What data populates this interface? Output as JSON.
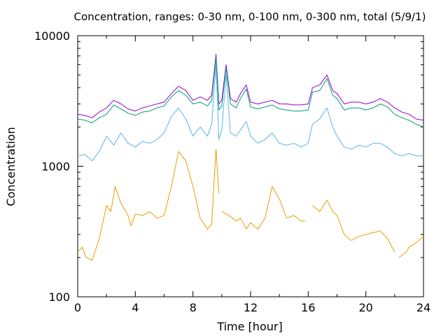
{
  "chart_data": {
    "type": "line",
    "title": "Concentration, ranges: 0-30 nm, 0-100 nm, 0-300 nm, total (5/9/1)",
    "xlabel": "Time [hour]",
    "ylabel": "Concentration",
    "xlim": [
      0,
      24
    ],
    "ylim": [
      100,
      10000
    ],
    "yscale": "log",
    "grid": false,
    "legend": "none",
    "x_ticks": [
      "0",
      "4",
      "8",
      "12",
      "16",
      "20",
      "24"
    ],
    "y_ticks": [
      "100",
      "1000",
      "10000"
    ],
    "series": [
      {
        "color": "#9400d3",
        "points": [
          [
            0,
            2500
          ],
          [
            0.5,
            2450
          ],
          [
            1,
            2350
          ],
          [
            1.5,
            2600
          ],
          [
            2,
            2800
          ],
          [
            2.5,
            3200
          ],
          [
            3,
            3000
          ],
          [
            3.5,
            2750
          ],
          [
            4,
            2650
          ],
          [
            4.5,
            2800
          ],
          [
            5,
            2900
          ],
          [
            5.5,
            3000
          ],
          [
            6,
            3100
          ],
          [
            6.5,
            3600
          ],
          [
            7,
            4100
          ],
          [
            7.5,
            3800
          ],
          [
            8,
            3200
          ],
          [
            8.5,
            3400
          ],
          [
            9,
            3200
          ],
          [
            9.3,
            3500
          ],
          [
            9.6,
            7200
          ],
          [
            9.8,
            3000
          ],
          [
            10,
            3200
          ],
          [
            10.3,
            6000
          ],
          [
            10.6,
            3300
          ],
          [
            11,
            3100
          ],
          [
            11.3,
            3600
          ],
          [
            11.7,
            4200
          ],
          [
            12,
            3100
          ],
          [
            12.5,
            3000
          ],
          [
            13,
            3100
          ],
          [
            13.5,
            3200
          ],
          [
            14,
            3000
          ],
          [
            14.5,
            3000
          ],
          [
            15,
            2950
          ],
          [
            15.5,
            2950
          ],
          [
            16,
            3000
          ],
          [
            16.3,
            4000
          ],
          [
            16.8,
            4200
          ],
          [
            17.3,
            5000
          ],
          [
            17.7,
            3800
          ],
          [
            18,
            3600
          ],
          [
            18.5,
            3000
          ],
          [
            19,
            3100
          ],
          [
            19.5,
            3100
          ],
          [
            20,
            3000
          ],
          [
            20.5,
            3100
          ],
          [
            21,
            3300
          ],
          [
            21.5,
            3100
          ],
          [
            22,
            2800
          ],
          [
            22.5,
            2600
          ],
          [
            23,
            2500
          ],
          [
            23.5,
            2300
          ],
          [
            24,
            2250
          ]
        ]
      },
      {
        "color": "#009e73",
        "points": [
          [
            0,
            2300
          ],
          [
            0.5,
            2250
          ],
          [
            1,
            2150
          ],
          [
            1.5,
            2350
          ],
          [
            2,
            2500
          ],
          [
            2.5,
            2950
          ],
          [
            3,
            2750
          ],
          [
            3.5,
            2550
          ],
          [
            4,
            2450
          ],
          [
            4.5,
            2600
          ],
          [
            5,
            2650
          ],
          [
            5.5,
            2800
          ],
          [
            6,
            2900
          ],
          [
            6.5,
            3400
          ],
          [
            7,
            3800
          ],
          [
            7.5,
            3500
          ],
          [
            8,
            3000
          ],
          [
            8.5,
            3100
          ],
          [
            9,
            2900
          ],
          [
            9.3,
            3200
          ],
          [
            9.6,
            6800
          ],
          [
            9.8,
            2700
          ],
          [
            10,
            2900
          ],
          [
            10.3,
            5700
          ],
          [
            10.6,
            3000
          ],
          [
            11,
            2800
          ],
          [
            11.3,
            3300
          ],
          [
            11.7,
            3900
          ],
          [
            12,
            2850
          ],
          [
            12.5,
            2750
          ],
          [
            13,
            2850
          ],
          [
            13.5,
            2950
          ],
          [
            14,
            2750
          ],
          [
            14.5,
            2700
          ],
          [
            15,
            2650
          ],
          [
            15.5,
            2650
          ],
          [
            16,
            2700
          ],
          [
            16.3,
            3700
          ],
          [
            16.8,
            3800
          ],
          [
            17.3,
            4700
          ],
          [
            17.7,
            3500
          ],
          [
            18,
            3300
          ],
          [
            18.5,
            2700
          ],
          [
            19,
            2800
          ],
          [
            19.5,
            2800
          ],
          [
            20,
            2700
          ],
          [
            20.5,
            2800
          ],
          [
            21,
            3000
          ],
          [
            21.5,
            2850
          ],
          [
            22,
            2500
          ],
          [
            22.5,
            2350
          ],
          [
            23,
            2250
          ],
          [
            23.5,
            2100
          ],
          [
            24,
            2000
          ]
        ]
      },
      {
        "color": "#56b4e9",
        "points": [
          [
            0,
            1200
          ],
          [
            0.5,
            1230
          ],
          [
            1,
            1100
          ],
          [
            1.5,
            1300
          ],
          [
            2,
            1700
          ],
          [
            2.5,
            1450
          ],
          [
            3,
            1800
          ],
          [
            3.5,
            1500
          ],
          [
            4,
            1400
          ],
          [
            4.5,
            1550
          ],
          [
            5,
            1500
          ],
          [
            5.5,
            1600
          ],
          [
            6,
            1800
          ],
          [
            6.5,
            2400
          ],
          [
            7,
            2800
          ],
          [
            7.5,
            2300
          ],
          [
            8,
            1700
          ],
          [
            8.5,
            2000
          ],
          [
            9,
            1700
          ],
          [
            9.3,
            2100
          ],
          [
            9.6,
            6000
          ],
          [
            9.8,
            1600
          ],
          [
            10,
            1900
          ],
          [
            10.3,
            5000
          ],
          [
            10.6,
            1800
          ],
          [
            11,
            1700
          ],
          [
            11.3,
            1900
          ],
          [
            11.7,
            2200
          ],
          [
            12,
            1700
          ],
          [
            12.5,
            1500
          ],
          [
            13,
            1600
          ],
          [
            13.5,
            1800
          ],
          [
            14,
            1500
          ],
          [
            14.5,
            1450
          ],
          [
            15,
            1500
          ],
          [
            15.5,
            1400
          ],
          [
            16,
            1500
          ],
          [
            16.3,
            2100
          ],
          [
            16.8,
            2300
          ],
          [
            17.3,
            2800
          ],
          [
            17.7,
            2000
          ],
          [
            18,
            1700
          ],
          [
            18.5,
            1400
          ],
          [
            19,
            1350
          ],
          [
            19.5,
            1450
          ],
          [
            20,
            1400
          ],
          [
            20.5,
            1500
          ],
          [
            21,
            1500
          ],
          [
            21.5,
            1400
          ],
          [
            22,
            1250
          ],
          [
            22.5,
            1200
          ],
          [
            23,
            1250
          ],
          [
            23.5,
            1200
          ],
          [
            24,
            1200
          ]
        ]
      },
      {
        "color": "#e69f00",
        "points": [
          [
            0,
            220
          ],
          [
            0.3,
            240
          ],
          [
            0.6,
            200
          ],
          [
            1,
            190
          ],
          [
            1.5,
            280
          ],
          [
            2,
            500
          ],
          [
            2.3,
            450
          ],
          [
            2.6,
            700
          ],
          [
            3,
            520
          ],
          [
            3.5,
            420
          ],
          [
            3.7,
            350
          ],
          [
            4,
            430
          ],
          [
            4.5,
            420
          ],
          [
            5,
            450
          ],
          [
            5.5,
            400
          ],
          [
            6,
            420
          ],
          [
            6.5,
            700
          ],
          [
            7,
            1300
          ],
          [
            7.5,
            1100
          ],
          [
            8,
            700
          ],
          [
            8.5,
            400
          ],
          [
            9,
            330
          ],
          [
            9.3,
            360
          ],
          [
            9.6,
            1350
          ],
          [
            9.8,
            620
          ],
          null,
          [
            10,
            450
          ],
          [
            10.5,
            420
          ],
          [
            11,
            380
          ],
          [
            11.3,
            400
          ],
          [
            11.7,
            330
          ],
          [
            12,
            370
          ],
          [
            12.5,
            330
          ],
          [
            13,
            400
          ],
          [
            13.5,
            700
          ],
          [
            14,
            560
          ],
          [
            14.5,
            400
          ],
          [
            15,
            420
          ],
          [
            15.5,
            380
          ],
          [
            15.8,
            380
          ],
          null,
          [
            16.3,
            500
          ],
          [
            16.8,
            450
          ],
          [
            17.3,
            550
          ],
          [
            17.7,
            450
          ],
          [
            18,
            420
          ],
          [
            18.5,
            300
          ],
          [
            19,
            270
          ],
          [
            19.5,
            290
          ],
          [
            20,
            300
          ],
          [
            20.5,
            310
          ],
          [
            21,
            320
          ],
          [
            21.5,
            280
          ],
          [
            22,
            220
          ],
          null,
          [
            22.3,
            200
          ],
          [
            22.8,
            220
          ],
          [
            23,
            240
          ],
          [
            23.5,
            260
          ],
          [
            24,
            290
          ]
        ]
      }
    ]
  }
}
